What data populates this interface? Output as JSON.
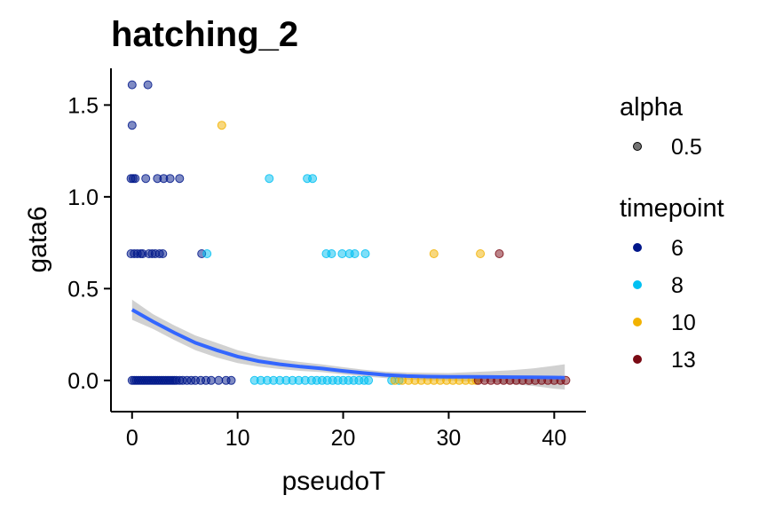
{
  "chart_data": {
    "type": "scatter",
    "title": "hatching_2",
    "xlabel": "pseudoT",
    "ylabel": "gata6",
    "xlim": [
      -2,
      43
    ],
    "ylim": [
      -0.17,
      1.7
    ],
    "x_ticks": [
      0,
      10,
      20,
      30,
      40
    ],
    "y_ticks": [
      0.0,
      0.5,
      1.0,
      1.5
    ],
    "x_tick_labels": [
      "0",
      "10",
      "20",
      "30",
      "40"
    ],
    "y_tick_labels": [
      "0.0",
      "0.5",
      "1.0",
      "1.5"
    ],
    "grid": false,
    "legend_placement": "right",
    "legends": [
      {
        "title": "alpha",
        "entries": [
          {
            "label": "0.5",
            "color": "#000000"
          }
        ]
      },
      {
        "title": "timepoint",
        "entries": [
          {
            "label": "6",
            "color": "#00178a"
          },
          {
            "label": "8",
            "color": "#00c0f2"
          },
          {
            "label": "10",
            "color": "#f2b200"
          },
          {
            "label": "13",
            "color": "#7a0a14"
          }
        ]
      }
    ],
    "point_alpha": 0.5,
    "series": [
      {
        "name": "6",
        "color": "#00178a",
        "points": [
          [
            0.0,
            1.61
          ],
          [
            1.5,
            1.61
          ],
          [
            0.0,
            1.39
          ],
          [
            -0.1,
            1.1
          ],
          [
            0.1,
            1.1
          ],
          [
            0.3,
            1.1
          ],
          [
            1.3,
            1.1
          ],
          [
            2.4,
            1.1
          ],
          [
            3.0,
            1.1
          ],
          [
            3.6,
            1.1
          ],
          [
            4.5,
            1.1
          ],
          [
            -0.1,
            0.69
          ],
          [
            0.2,
            0.69
          ],
          [
            0.5,
            0.69
          ],
          [
            0.8,
            0.69
          ],
          [
            1.0,
            0.69
          ],
          [
            1.6,
            0.69
          ],
          [
            1.9,
            0.69
          ],
          [
            2.2,
            0.69
          ],
          [
            2.6,
            0.69
          ],
          [
            2.9,
            0.69
          ],
          [
            6.6,
            0.69
          ],
          [
            0.0,
            0
          ],
          [
            0.2,
            0
          ],
          [
            0.4,
            0
          ],
          [
            0.6,
            0
          ],
          [
            0.8,
            0
          ],
          [
            1.0,
            0
          ],
          [
            1.2,
            0
          ],
          [
            1.4,
            0
          ],
          [
            1.6,
            0
          ],
          [
            1.8,
            0
          ],
          [
            2.0,
            0
          ],
          [
            2.2,
            0
          ],
          [
            2.4,
            0
          ],
          [
            2.6,
            0
          ],
          [
            2.8,
            0
          ],
          [
            3.0,
            0
          ],
          [
            3.2,
            0
          ],
          [
            3.4,
            0
          ],
          [
            3.6,
            0
          ],
          [
            3.8,
            0
          ],
          [
            4.0,
            0
          ],
          [
            4.2,
            0
          ],
          [
            4.5,
            0
          ],
          [
            4.8,
            0
          ],
          [
            5.2,
            0
          ],
          [
            5.6,
            0
          ],
          [
            6.0,
            0
          ],
          [
            6.5,
            0
          ],
          [
            7.0,
            0
          ],
          [
            7.5,
            0
          ],
          [
            8.2,
            0
          ],
          [
            8.9,
            0
          ],
          [
            9.4,
            0
          ]
        ]
      },
      {
        "name": "8",
        "color": "#00c0f2",
        "points": [
          [
            7.1,
            0.69
          ],
          [
            13.0,
            1.1
          ],
          [
            16.6,
            1.1
          ],
          [
            17.1,
            1.1
          ],
          [
            18.4,
            0.69
          ],
          [
            18.9,
            0.69
          ],
          [
            19.9,
            0.69
          ],
          [
            20.6,
            0.69
          ],
          [
            21.1,
            0.69
          ],
          [
            22.1,
            0.69
          ],
          [
            11.6,
            0
          ],
          [
            12.2,
            0
          ],
          [
            12.8,
            0
          ],
          [
            13.4,
            0
          ],
          [
            14.0,
            0
          ],
          [
            14.6,
            0
          ],
          [
            15.2,
            0
          ],
          [
            15.8,
            0
          ],
          [
            16.4,
            0
          ],
          [
            17.0,
            0
          ],
          [
            17.5,
            0
          ],
          [
            18.0,
            0
          ],
          [
            18.5,
            0
          ],
          [
            19.0,
            0
          ],
          [
            19.5,
            0
          ],
          [
            20.0,
            0
          ],
          [
            20.5,
            0
          ],
          [
            21.0,
            0
          ],
          [
            21.5,
            0
          ],
          [
            22.0,
            0
          ],
          [
            22.4,
            0
          ],
          [
            24.6,
            0
          ],
          [
            25.3,
            0
          ]
        ]
      },
      {
        "name": "10",
        "color": "#f2b200",
        "points": [
          [
            8.5,
            1.39
          ],
          [
            28.6,
            0.69
          ],
          [
            33.0,
            0.69
          ],
          [
            24.9,
            0
          ],
          [
            25.6,
            0
          ],
          [
            26.2,
            0
          ],
          [
            26.8,
            0
          ],
          [
            27.4,
            0
          ],
          [
            28.0,
            0
          ],
          [
            28.6,
            0
          ],
          [
            29.2,
            0
          ],
          [
            29.8,
            0
          ],
          [
            30.4,
            0
          ],
          [
            31.0,
            0
          ],
          [
            31.6,
            0
          ],
          [
            32.2,
            0
          ],
          [
            32.6,
            0
          ]
        ]
      },
      {
        "name": "13",
        "color": "#7a0a14",
        "points": [
          [
            34.8,
            0.69
          ],
          [
            32.8,
            0
          ],
          [
            33.4,
            0
          ],
          [
            34.0,
            0
          ],
          [
            34.6,
            0
          ],
          [
            35.2,
            0
          ],
          [
            35.8,
            0
          ],
          [
            36.4,
            0
          ],
          [
            37.0,
            0
          ],
          [
            37.6,
            0
          ],
          [
            38.2,
            0
          ],
          [
            38.8,
            0
          ],
          [
            39.4,
            0
          ],
          [
            40.0,
            0
          ],
          [
            40.6,
            0
          ],
          [
            41.1,
            0
          ]
        ]
      }
    ],
    "smooth": {
      "color": "#3366ff",
      "band_color": "#b3b3b3",
      "x": [
        0,
        2,
        4,
        6,
        8,
        10,
        12,
        14,
        16,
        18,
        20,
        22,
        24,
        26,
        28,
        30,
        32,
        34,
        36,
        38,
        40,
        41
      ],
      "y": [
        0.385,
        0.32,
        0.26,
        0.205,
        0.165,
        0.13,
        0.105,
        0.088,
        0.075,
        0.065,
        0.052,
        0.04,
        0.03,
        0.024,
        0.021,
        0.02,
        0.02,
        0.019,
        0.018,
        0.017,
        0.016,
        0.015
      ],
      "ymin": [
        0.33,
        0.28,
        0.22,
        0.165,
        0.125,
        0.095,
        0.075,
        0.062,
        0.052,
        0.045,
        0.033,
        0.022,
        0.012,
        0.005,
        0.001,
        0.0,
        -0.005,
        -0.01,
        -0.02,
        -0.03,
        -0.045,
        -0.05
      ],
      "ymax": [
        0.44,
        0.36,
        0.3,
        0.245,
        0.205,
        0.165,
        0.135,
        0.115,
        0.1,
        0.087,
        0.072,
        0.058,
        0.048,
        0.043,
        0.041,
        0.04,
        0.045,
        0.05,
        0.056,
        0.066,
        0.08,
        0.088
      ]
    }
  }
}
